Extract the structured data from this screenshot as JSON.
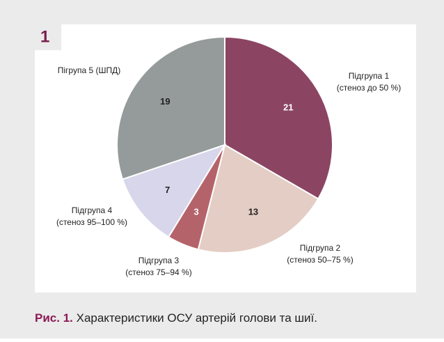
{
  "panel_label": "1",
  "chart_data": {
    "type": "pie",
    "categories": [
      [
        "Підгрупа 1",
        "(стеноз до 50 %)"
      ],
      [
        "Підгрупа 2",
        "(стеноз 50–75 %)"
      ],
      [
        "Підгрупа 3",
        "(стеноз 75–94 %)"
      ],
      [
        "Підгрупа 4",
        "(стеноз 95–100 %)"
      ],
      [
        "Пігрупа 5 (ШПД)"
      ]
    ],
    "values": [
      21,
      13,
      3,
      7,
      19
    ],
    "colors": [
      "#8b4563",
      "#e3cdc4",
      "#b5636a",
      "#d8d6ea",
      "#949b9a"
    ]
  },
  "caption_label": "Рис. 1.",
  "caption": "Характеристики ОСУ артерій голови та шиї."
}
